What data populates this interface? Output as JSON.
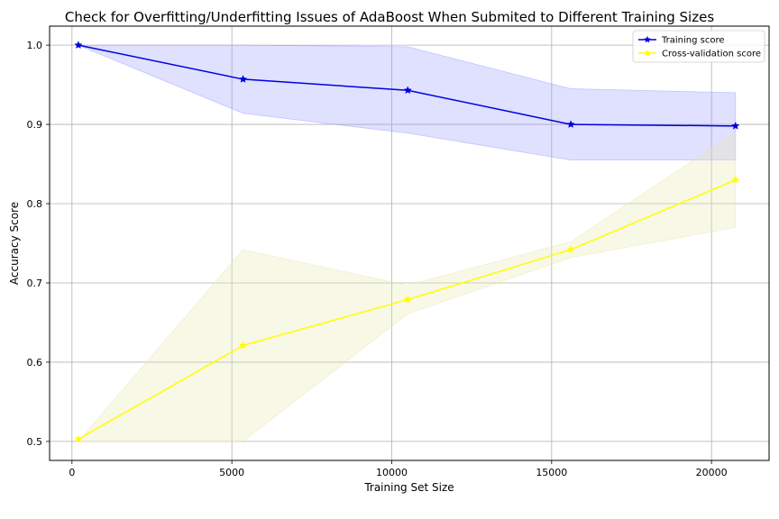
{
  "chart_data": {
    "type": "line",
    "title": "Check for Overfitting/Underfitting Issues of AdaBoost When Submited to Different Training Sizes",
    "xlabel": "Training Set Size",
    "ylabel": "Accuracy Score",
    "xlim": [
      -700,
      21800
    ],
    "ylim": [
      0.476,
      1.024
    ],
    "xticks": [
      0,
      5000,
      10000,
      15000,
      20000
    ],
    "yticks": [
      0.5,
      0.6,
      0.7,
      0.8,
      0.9,
      1.0
    ],
    "ytick_labels": [
      "0.5",
      "0.6",
      "0.7",
      "0.8",
      "0.9",
      "1.0"
    ],
    "grid": true,
    "legend_position": "top-right",
    "x": [
      200,
      5350,
      10500,
      15600,
      20750
    ],
    "series": [
      {
        "name": "Training score",
        "color": "#0000dd",
        "fill_color": "#9999ff",
        "marker": "star",
        "values": [
          1.0,
          0.957,
          0.943,
          0.9,
          0.898
        ],
        "band_upper": [
          1.0,
          1.0,
          0.998,
          0.945,
          0.94
        ],
        "band_lower": [
          1.0,
          0.914,
          0.889,
          0.855,
          0.855
        ]
      },
      {
        "name": "Cross-validation score",
        "color": "#ffff00",
        "fill_color": "#e8e8b0",
        "marker": "star",
        "values": [
          0.503,
          0.621,
          0.679,
          0.742,
          0.83
        ],
        "band_upper": [
          0.5,
          0.742,
          0.697,
          0.752,
          0.89
        ],
        "band_lower": [
          0.5,
          0.5,
          0.661,
          0.732,
          0.77
        ]
      }
    ]
  }
}
